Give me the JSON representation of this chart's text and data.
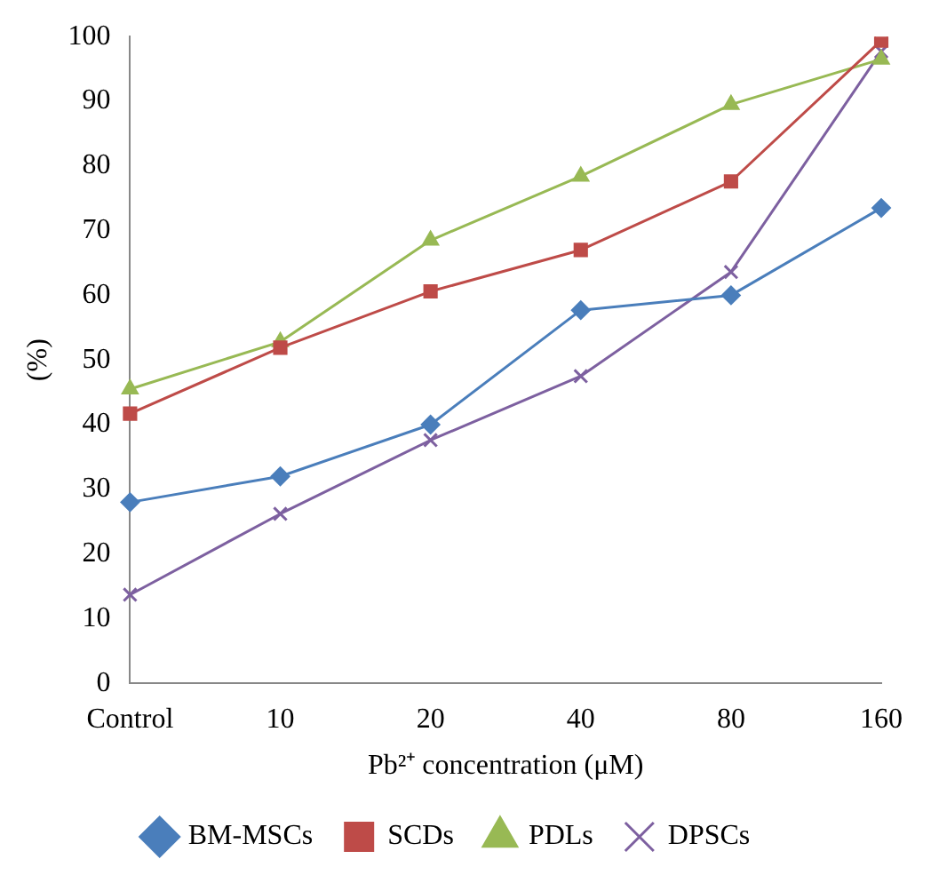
{
  "chart_data": {
    "type": "line",
    "xlabel": "Pb²⁺ concentration (μM)",
    "ylabel": "(%)",
    "categories": [
      "Control",
      "10",
      "20",
      "40",
      "80",
      "160"
    ],
    "series": [
      {
        "name": "BM-MSCs",
        "color": "#4a7ebb",
        "marker": "diamond",
        "values": [
          28,
          32,
          40,
          57.7,
          60,
          73.5
        ]
      },
      {
        "name": "SCDs",
        "color": "#be4b48",
        "marker": "square",
        "values": [
          41.7,
          51.9,
          60.6,
          67,
          77.6,
          99.4
        ]
      },
      {
        "name": "PDLs",
        "color": "#98b954",
        "marker": "triangle",
        "values": [
          45.5,
          52.8,
          68.5,
          78.4,
          89.5,
          96.5
        ]
      },
      {
        "name": "DPSCs",
        "color": "#7d60a0",
        "marker": "cross",
        "values": [
          13.7,
          26.2,
          37.6,
          47.5,
          63.6,
          97.7
        ]
      }
    ],
    "ylim": [
      0,
      100
    ],
    "yticks": [
      0,
      10,
      20,
      30,
      40,
      50,
      60,
      70,
      80,
      90,
      100
    ],
    "grid": false,
    "legend": "bottom"
  }
}
